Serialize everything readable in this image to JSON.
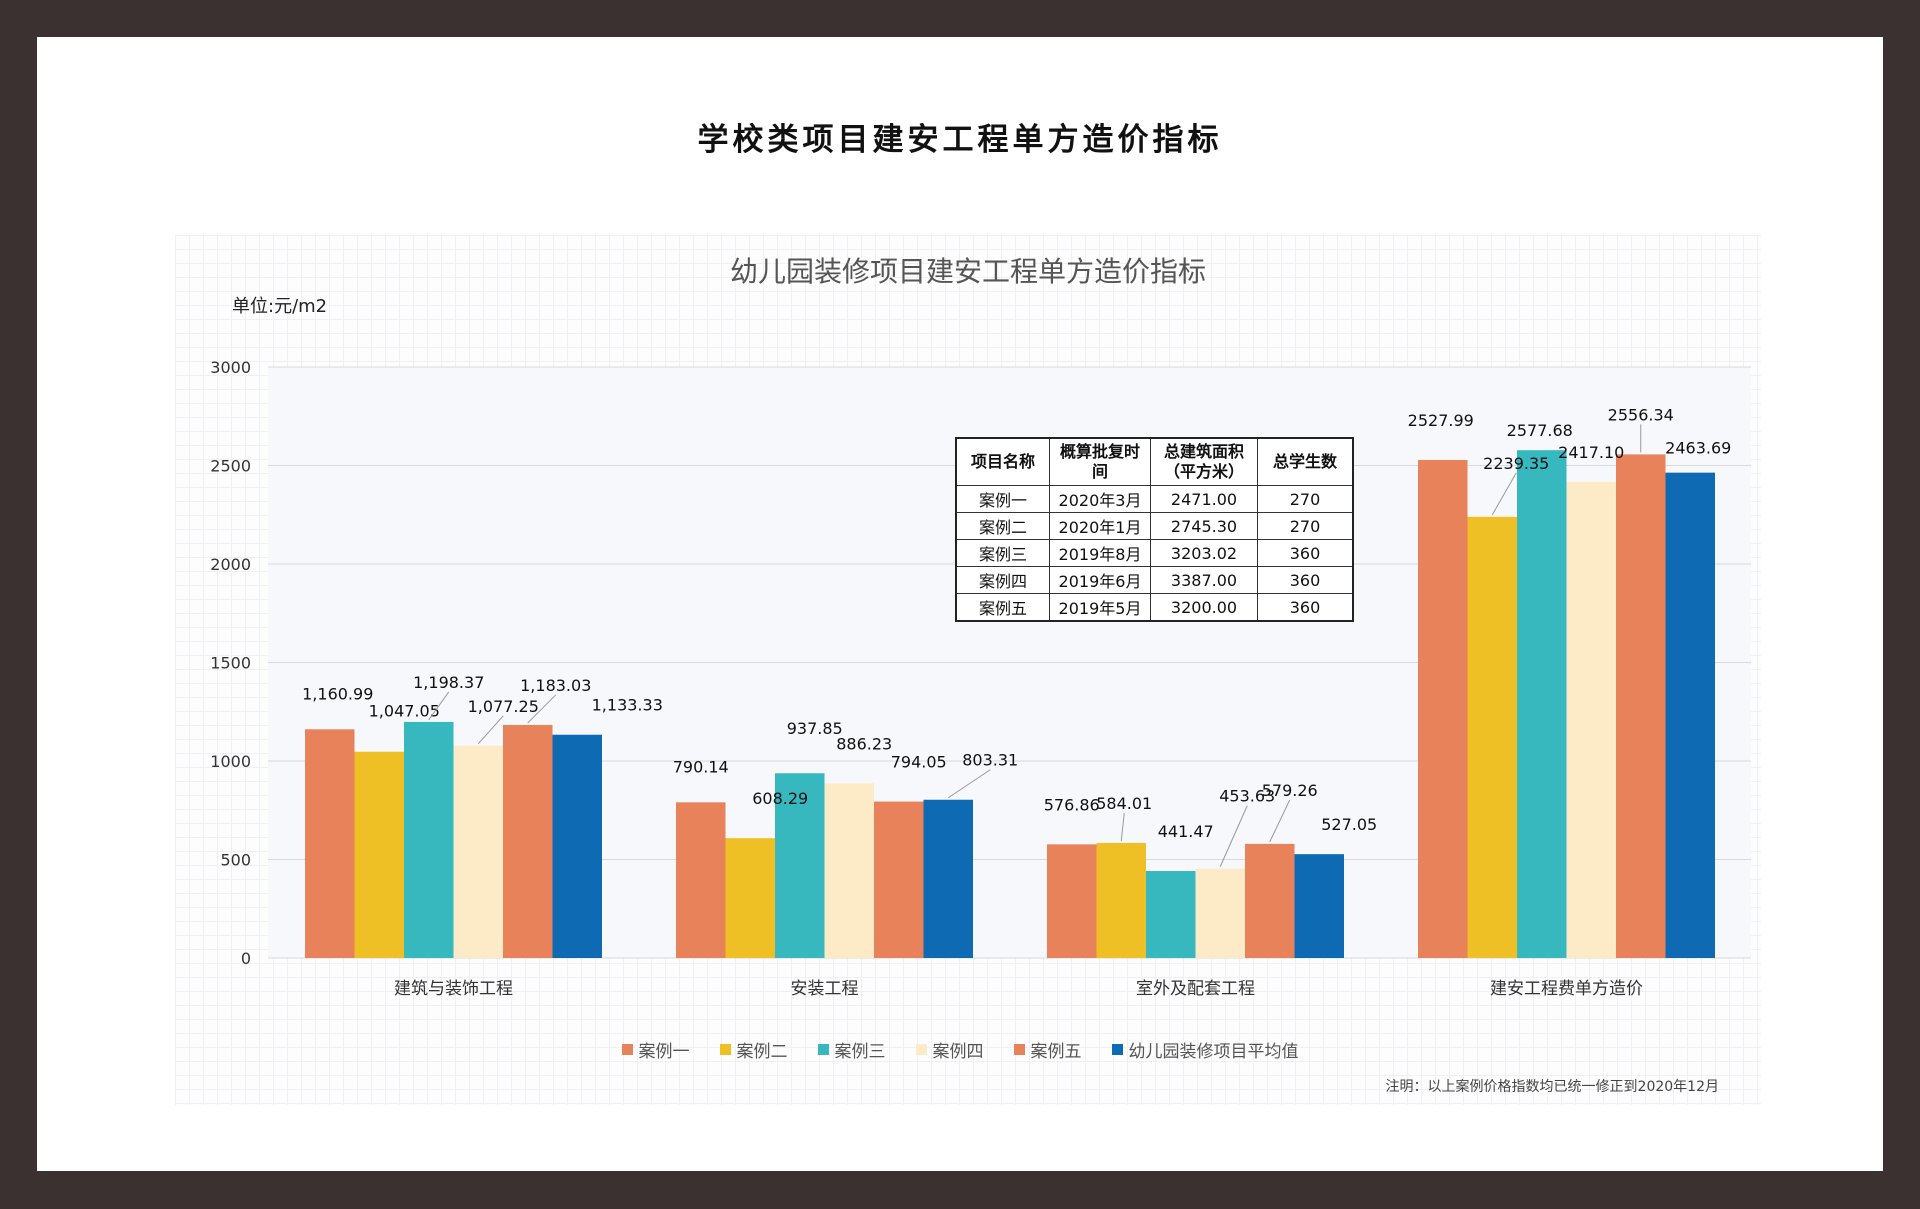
{
  "page": {
    "title": "学校类项目建安工程单方造价指标",
    "footnote": "注明：以上案例价格指数均已统一修正到2020年12月"
  },
  "chart_data": {
    "type": "bar",
    "title": "幼儿园装修项目建安工程单方造价指标",
    "unit_label": "单位:元/m2",
    "ylim": [
      0,
      3000
    ],
    "yticks": [
      0,
      500,
      1000,
      1500,
      2000,
      2500,
      3000
    ],
    "grid": true,
    "legend_position": "bottom",
    "categories": [
      "建筑与装饰工程",
      "安装工程",
      "室外及配套工程",
      "建安工程费单方造价"
    ],
    "series": [
      {
        "name": "案例一",
        "color": "#e8825a",
        "values": [
          1160.99,
          790.14,
          576.86,
          2527.99
        ],
        "labels": [
          "1,160.99",
          "790.14",
          "576.86",
          "2527.99"
        ]
      },
      {
        "name": "案例二",
        "color": "#efc025",
        "values": [
          1047.05,
          608.29,
          584.01,
          2239.35
        ],
        "labels": [
          "1,047.05",
          "608.29",
          "584.01",
          "2239.35"
        ]
      },
      {
        "name": "案例三",
        "color": "#36b8be",
        "values": [
          1198.37,
          937.85,
          441.47,
          2577.68
        ],
        "labels": [
          "1,198.37",
          "937.85",
          "441.47",
          "2577.68"
        ]
      },
      {
        "name": "案例四",
        "color": "#fcebc6",
        "values": [
          1077.25,
          886.23,
          453.63,
          2417.1
        ],
        "labels": [
          "1,077.25",
          "886.23",
          "453.63",
          "2417.10"
        ]
      },
      {
        "name": "案例五",
        "color": "#e8825a",
        "values": [
          1183.03,
          794.05,
          579.26,
          2556.34
        ],
        "labels": [
          "1,183.03",
          "794.05",
          "579.26",
          "2556.34"
        ]
      },
      {
        "name": "幼儿园装修项目平均值",
        "color": "#0f6ab4",
        "values": [
          1133.33,
          803.31,
          527.05,
          2463.69
        ],
        "labels": [
          "1,133.33",
          "803.31",
          "527.05",
          "2463.69"
        ]
      }
    ]
  },
  "info_table": {
    "headers": [
      "项目名称",
      "概算批复时间",
      "总建筑面积（平方米）",
      "总学生数"
    ],
    "rows": [
      [
        "案例一",
        "2020年3月",
        "2471.00",
        "270"
      ],
      [
        "案例二",
        "2020年1月",
        "2745.30",
        "270"
      ],
      [
        "案例三",
        "2019年8月",
        "3203.02",
        "360"
      ],
      [
        "案例四",
        "2019年6月",
        "3387.00",
        "360"
      ],
      [
        "案例五",
        "2019年5月",
        "3200.00",
        "360"
      ]
    ]
  }
}
